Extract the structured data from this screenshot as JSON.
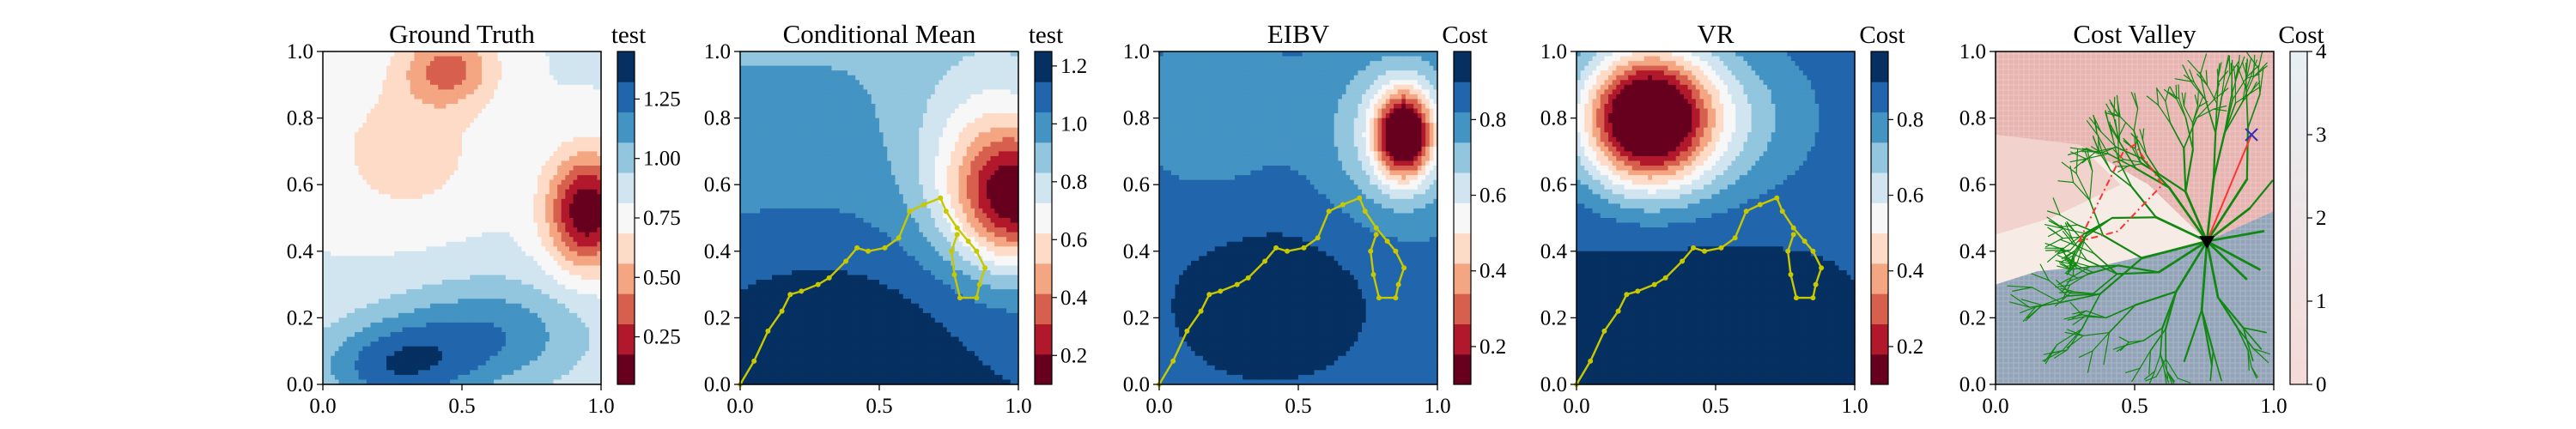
{
  "figure": {
    "background": "#ffffff"
  },
  "chart_data": [
    {
      "type": "heatmap",
      "title": "Ground Truth",
      "colorbar_label": "test",
      "xticks": [
        "0.0",
        "0.5",
        "1.0"
      ],
      "yticks": [
        "0.0",
        "0.2",
        "0.4",
        "0.6",
        "0.8",
        "1.0"
      ],
      "xlim": [
        0,
        1
      ],
      "ylim": [
        0,
        1
      ],
      "colorbar_ticks": [
        "0.25",
        "0.50",
        "0.75",
        "1.00",
        "1.25"
      ],
      "colorbar_tick_values": [
        0.25,
        0.5,
        0.75,
        1.0,
        1.25
      ],
      "colorbar_range": [
        0.05,
        1.45
      ],
      "colormap": "RdBu",
      "colors": [
        "#67001f",
        "#b2182b",
        "#d6604d",
        "#f4a582",
        "#fddbc7",
        "#f7f7f7",
        "#d1e5f0",
        "#92c5de",
        "#4393c3",
        "#2166ac",
        "#053061"
      ],
      "path": []
    },
    {
      "type": "heatmap",
      "title": "Conditional Mean",
      "colorbar_label": "test",
      "xticks": [
        "0.0",
        "0.5",
        "1.0"
      ],
      "yticks": [
        "0.0",
        "0.2",
        "0.4",
        "0.6",
        "0.8",
        "1.0"
      ],
      "xlim": [
        0,
        1
      ],
      "ylim": [
        0,
        1
      ],
      "colorbar_ticks": [
        "0.2",
        "0.4",
        "0.6",
        "0.8",
        "1.0",
        "1.2"
      ],
      "colorbar_tick_values": [
        0.2,
        0.4,
        0.6,
        0.8,
        1.0,
        1.2
      ],
      "colorbar_range": [
        0.1,
        1.25
      ],
      "colormap": "RdBu",
      "colors": [
        "#67001f",
        "#b2182b",
        "#d6604d",
        "#f4a582",
        "#fddbc7",
        "#f7f7f7",
        "#d1e5f0",
        "#92c5de",
        "#4393c3",
        "#2166ac",
        "#053061"
      ],
      "path_color": "#c8c800",
      "path": [
        [
          0,
          0
        ],
        [
          0.05,
          0.07
        ],
        [
          0.1,
          0.16
        ],
        [
          0.15,
          0.22
        ],
        [
          0.18,
          0.27
        ],
        [
          0.22,
          0.28
        ],
        [
          0.28,
          0.3
        ],
        [
          0.32,
          0.32
        ],
        [
          0.38,
          0.37
        ],
        [
          0.42,
          0.41
        ],
        [
          0.46,
          0.4
        ],
        [
          0.52,
          0.41
        ],
        [
          0.57,
          0.44
        ],
        [
          0.61,
          0.52
        ],
        [
          0.66,
          0.54
        ],
        [
          0.72,
          0.56
        ],
        [
          0.74,
          0.52
        ],
        [
          0.78,
          0.47
        ],
        [
          0.82,
          0.43
        ],
        [
          0.85,
          0.4
        ],
        [
          0.88,
          0.35
        ],
        [
          0.86,
          0.3
        ],
        [
          0.85,
          0.26
        ],
        [
          0.79,
          0.26
        ],
        [
          0.77,
          0.33
        ],
        [
          0.76,
          0.4
        ],
        [
          0.78,
          0.45
        ]
      ]
    },
    {
      "type": "heatmap",
      "title": "EIBV",
      "colorbar_label": "Cost",
      "xticks": [
        "0.0",
        "0.5",
        "1.0"
      ],
      "yticks": [
        "0.0",
        "0.2",
        "0.4",
        "0.6",
        "0.8",
        "1.0"
      ],
      "xlim": [
        0,
        1
      ],
      "ylim": [
        0,
        1
      ],
      "colorbar_ticks": [
        "0.2",
        "0.4",
        "0.6",
        "0.8"
      ],
      "colorbar_tick_values": [
        0.2,
        0.4,
        0.6,
        0.8
      ],
      "colorbar_range": [
        0.1,
        0.98
      ],
      "colormap": "RdBu",
      "colors": [
        "#67001f",
        "#b2182b",
        "#d6604d",
        "#f4a582",
        "#fddbc7",
        "#f7f7f7",
        "#d1e5f0",
        "#92c5de",
        "#4393c3",
        "#2166ac",
        "#053061"
      ],
      "path_color": "#c8c800",
      "path": [
        [
          0,
          0
        ],
        [
          0.05,
          0.07
        ],
        [
          0.1,
          0.16
        ],
        [
          0.15,
          0.22
        ],
        [
          0.18,
          0.27
        ],
        [
          0.22,
          0.28
        ],
        [
          0.28,
          0.3
        ],
        [
          0.32,
          0.32
        ],
        [
          0.38,
          0.37
        ],
        [
          0.42,
          0.41
        ],
        [
          0.46,
          0.4
        ],
        [
          0.52,
          0.41
        ],
        [
          0.57,
          0.44
        ],
        [
          0.61,
          0.52
        ],
        [
          0.66,
          0.54
        ],
        [
          0.72,
          0.56
        ],
        [
          0.74,
          0.52
        ],
        [
          0.78,
          0.47
        ],
        [
          0.82,
          0.43
        ],
        [
          0.85,
          0.4
        ],
        [
          0.88,
          0.35
        ],
        [
          0.86,
          0.3
        ],
        [
          0.85,
          0.26
        ],
        [
          0.79,
          0.26
        ],
        [
          0.77,
          0.33
        ],
        [
          0.76,
          0.4
        ],
        [
          0.78,
          0.45
        ]
      ]
    },
    {
      "type": "heatmap",
      "title": "VR",
      "colorbar_label": "Cost",
      "xticks": [
        "0.0",
        "0.5",
        "1.0"
      ],
      "yticks": [
        "0.0",
        "0.2",
        "0.4",
        "0.6",
        "0.8",
        "1.0"
      ],
      "xlim": [
        0,
        1
      ],
      "ylim": [
        0,
        1
      ],
      "colorbar_ticks": [
        "0.2",
        "0.4",
        "0.6",
        "0.8"
      ],
      "colorbar_tick_values": [
        0.2,
        0.4,
        0.6,
        0.8
      ],
      "colorbar_range": [
        0.1,
        0.98
      ],
      "colormap": "RdBu",
      "colors": [
        "#67001f",
        "#b2182b",
        "#d6604d",
        "#f4a582",
        "#fddbc7",
        "#f7f7f7",
        "#d1e5f0",
        "#92c5de",
        "#4393c3",
        "#2166ac",
        "#053061"
      ],
      "path_color": "#c8c800",
      "path": [
        [
          0,
          0
        ],
        [
          0.05,
          0.07
        ],
        [
          0.1,
          0.16
        ],
        [
          0.15,
          0.22
        ],
        [
          0.18,
          0.27
        ],
        [
          0.22,
          0.28
        ],
        [
          0.28,
          0.3
        ],
        [
          0.32,
          0.32
        ],
        [
          0.38,
          0.37
        ],
        [
          0.42,
          0.41
        ],
        [
          0.46,
          0.4
        ],
        [
          0.52,
          0.41
        ],
        [
          0.57,
          0.44
        ],
        [
          0.61,
          0.52
        ],
        [
          0.66,
          0.54
        ],
        [
          0.72,
          0.56
        ],
        [
          0.74,
          0.52
        ],
        [
          0.78,
          0.47
        ],
        [
          0.82,
          0.43
        ],
        [
          0.85,
          0.4
        ],
        [
          0.88,
          0.35
        ],
        [
          0.86,
          0.3
        ],
        [
          0.85,
          0.26
        ],
        [
          0.79,
          0.26
        ],
        [
          0.77,
          0.33
        ],
        [
          0.76,
          0.4
        ],
        [
          0.78,
          0.45
        ]
      ]
    },
    {
      "type": "heatmap",
      "title": "Cost Valley",
      "colorbar_label": "Cost",
      "xticks": [
        "0.0",
        "0.5",
        "1.0"
      ],
      "yticks": [
        "0.0",
        "0.2",
        "0.4",
        "0.6",
        "0.8",
        "1.0"
      ],
      "xlim": [
        0,
        1
      ],
      "ylim": [
        0,
        1
      ],
      "colorbar_ticks": [
        "0",
        "1",
        "2",
        "3",
        "4"
      ],
      "colorbar_tick_values": [
        0,
        1,
        2,
        3,
        4
      ],
      "colorbar_range": [
        0,
        4
      ],
      "colormap": "light-red-to-blue-gray",
      "colors": [
        "#f4dad8",
        "#e8f0f4"
      ],
      "tree_color": "#118811",
      "tree_root": [
        0.76,
        0.43
      ],
      "current_location": [
        0.76,
        0.43
      ],
      "target_location": [
        0.92,
        0.75
      ],
      "target_color": "#3030c0",
      "segment_color": "#ff3333",
      "polygon": [
        [
          0.3,
          0.43
        ],
        [
          0.46,
          0.7
        ],
        [
          0.5,
          0.72
        ],
        [
          0.6,
          0.6
        ],
        [
          0.44,
          0.46
        ]
      ],
      "polygon_color": "#ff3333"
    }
  ]
}
